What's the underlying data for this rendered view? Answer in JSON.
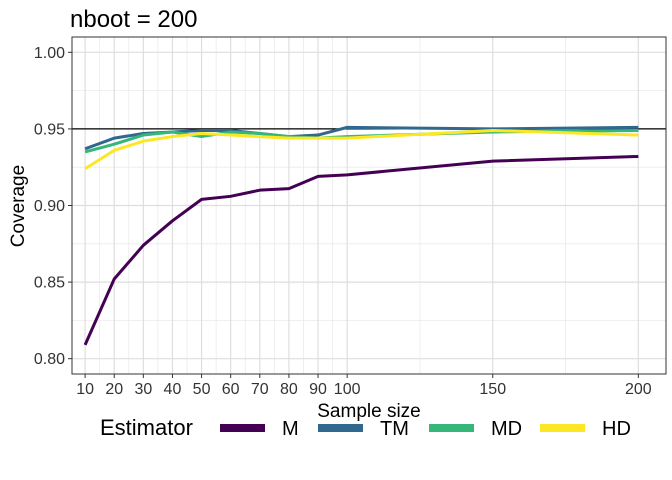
{
  "chart_data": {
    "type": "line",
    "title": "nboot = 200",
    "xlabel": "Sample size",
    "ylabel": "Coverage",
    "x": [
      10,
      20,
      30,
      40,
      50,
      60,
      70,
      80,
      90,
      100,
      150,
      200
    ],
    "x_tick_labels": [
      "10",
      "20",
      "30",
      "40",
      "50",
      "60",
      "70",
      "80",
      "90",
      "100",
      "150",
      "200"
    ],
    "y_tick_labels": [
      "0.80",
      "0.85",
      "0.90",
      "0.95",
      "1.00"
    ],
    "xlim": [
      5.5,
      209.5
    ],
    "ylim": [
      0.79,
      1.01
    ],
    "reference_line": 0.95,
    "grid": true,
    "legend": {
      "title": "Estimator",
      "position": "bottom"
    },
    "series": [
      {
        "name": "M",
        "color": "#440154",
        "values": [
          0.809,
          0.852,
          0.874,
          0.89,
          0.904,
          0.906,
          0.91,
          0.911,
          0.919,
          0.92,
          0.929,
          0.932
        ]
      },
      {
        "name": "TM",
        "color": "#31688E",
        "values": [
          0.937,
          0.944,
          0.947,
          0.948,
          0.949,
          0.949,
          0.947,
          0.945,
          0.946,
          0.951,
          0.95,
          0.951
        ]
      },
      {
        "name": "MD",
        "color": "#35B779",
        "values": [
          0.935,
          0.94,
          0.946,
          0.948,
          0.945,
          0.948,
          0.947,
          0.945,
          0.944,
          0.945,
          0.948,
          0.949
        ]
      },
      {
        "name": "HD",
        "color": "#FDE725",
        "values": [
          0.924,
          0.936,
          0.942,
          0.945,
          0.947,
          0.946,
          0.945,
          0.944,
          0.944,
          0.944,
          0.949,
          0.946
        ]
      }
    ]
  }
}
